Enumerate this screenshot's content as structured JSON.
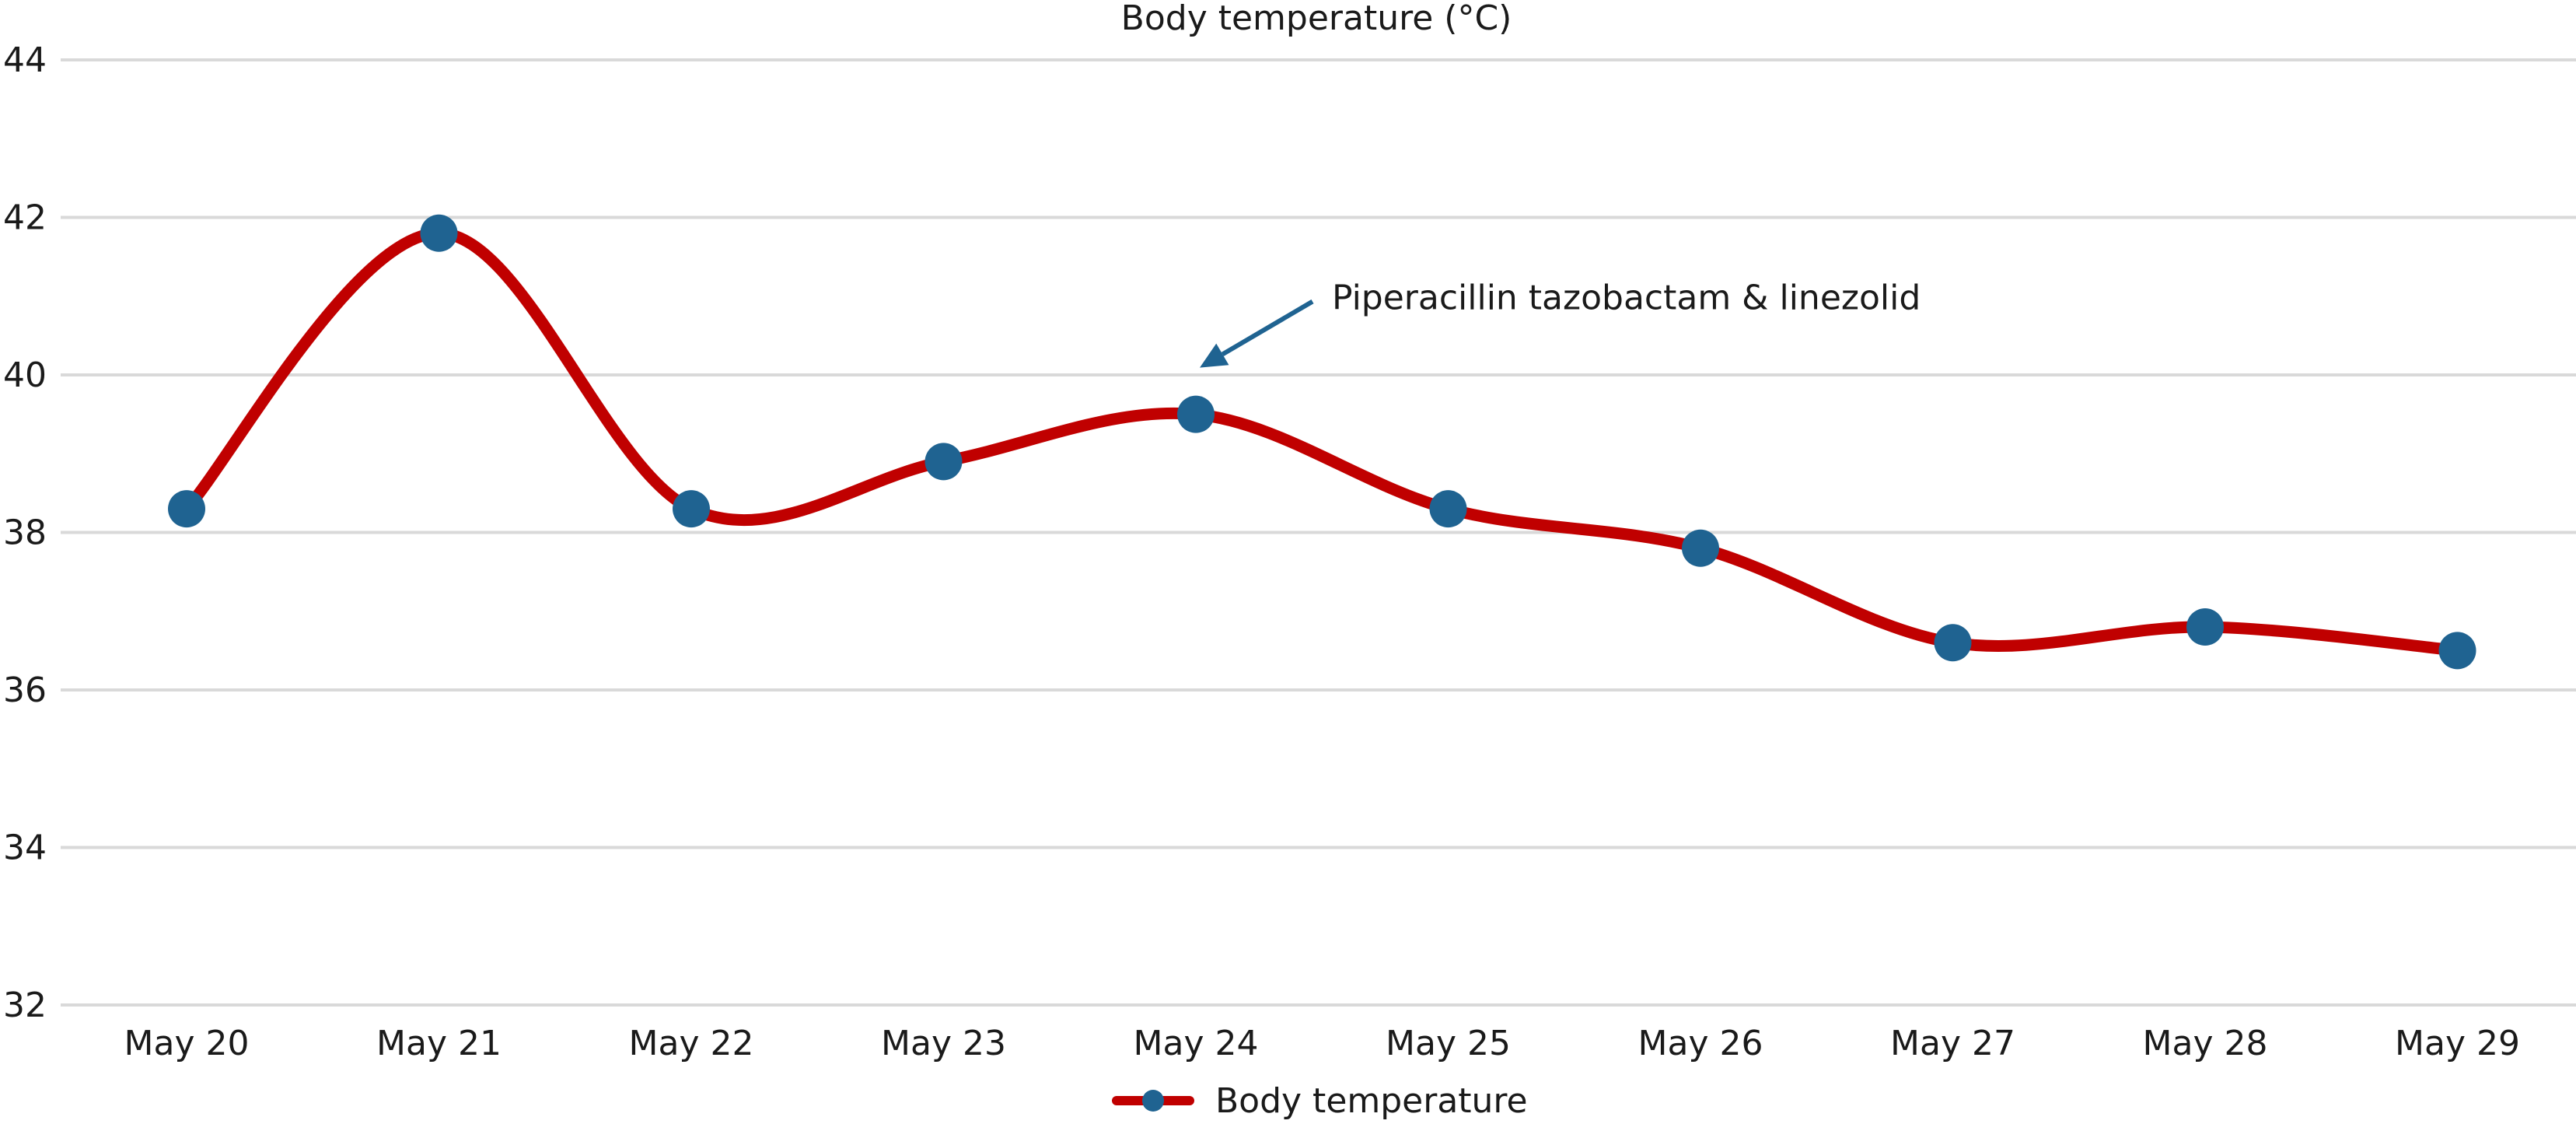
{
  "chart_data": {
    "type": "line",
    "title": "Body temperature (°C)",
    "xlabel": "",
    "ylabel": "",
    "categories": [
      "May 20",
      "May 21",
      "May 22",
      "May 23",
      "May 24",
      "May 25",
      "May 26",
      "May 27",
      "May 28",
      "May 29"
    ],
    "series": [
      {
        "name": "Body temperature",
        "values": [
          38.3,
          41.8,
          38.3,
          38.9,
          39.5,
          38.3,
          37.8,
          36.6,
          36.8,
          36.5
        ]
      }
    ],
    "ylim": [
      32,
      44
    ],
    "yticks": [
      "32",
      "34",
      "36",
      "38",
      "40",
      "42",
      "44"
    ],
    "grid": true,
    "smooth": true,
    "legend_position": "bottom",
    "annotation": {
      "text": "Piperacillin tazobactam & linezolid",
      "category": "May 24"
    },
    "colors": {
      "line": "#c00000",
      "marker": "#1f6391",
      "grid": "#d9d9d9",
      "arrow": "#1f6391"
    }
  }
}
